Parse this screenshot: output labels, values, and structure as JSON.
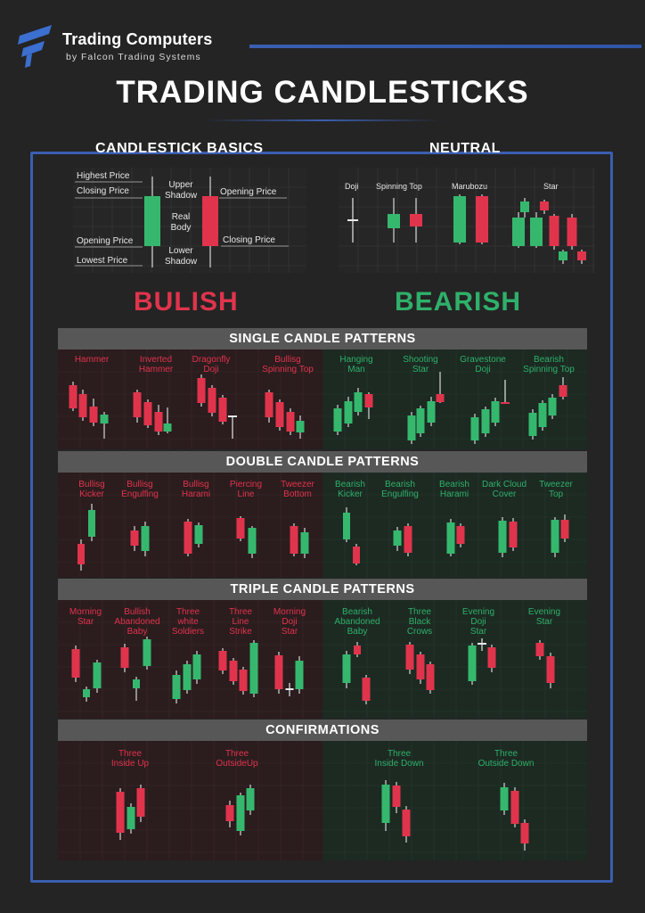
{
  "brand": {
    "title": "Trading Computers",
    "subtitle": "by Falcon Trading Systems"
  },
  "title": "TRADING CANDLESTICKS",
  "colors": {
    "bull": "#35b86e",
    "bear": "#e0344c",
    "accent": "#3b5eb0",
    "bar": "#575757"
  },
  "basics": {
    "heading": "CANDLESTICK BASICS",
    "labels": {
      "highest": "Highest Price",
      "closing_left": "Closing Price",
      "opening_left": "Opening Price",
      "lowest": "Lowest Price",
      "upper_shadow": "Upper\nShadow",
      "real_body": "Real\nBody",
      "lower_shadow": "Lower\nShadow",
      "opening_right": "Opening Price",
      "closing_right": "Closing Price"
    }
  },
  "neutral": {
    "heading": "NEUTRAL",
    "items": [
      "Doji",
      "Spinning Top",
      "Marubozu",
      "Star"
    ]
  },
  "sides": {
    "bullish": "BULISH",
    "bearish": "BEARISH"
  },
  "single": {
    "heading": "SINGLE CANDLE PATTERNS",
    "bullish": [
      "Hammer",
      "Inverted\nHammer",
      "Dragonfly\nDoji",
      "Bullisg\nSpinning Top"
    ],
    "bearish": [
      "Hanging\nMan",
      "Shooting\nStar",
      "Gravestone\nDoji",
      "Bearish\nSpinning Top"
    ]
  },
  "double": {
    "heading": "DOUBLE CANDLE PATTERNS",
    "bullish": [
      "Bullisg\nKicker",
      "Bullisg\nEngulfing",
      "Bullisg\nHarami",
      "Piercing\nLine",
      "Tweezer\nBottom"
    ],
    "bearish": [
      "Bearish\nKicker",
      "Bearish\nEngulfing",
      "Bearish\nHarami",
      "Dark Cloud\nCover",
      "Tweezer\nTop"
    ]
  },
  "triple": {
    "heading": "TRIPLE CANDLE PATTERNS",
    "bullish": [
      "Morning\nStar",
      "Bullish\nAbandoned\nBaby",
      "Three\nwhite\nSoldiers",
      "Three\nLine\nStrike",
      "Morning\nDoji\nStar"
    ],
    "bearish": [
      "Bearish\nAbandoned\nBaby",
      "Three\nBlack\nCrows",
      "Evening\nDoji\nStar",
      "Evening\nStar"
    ]
  },
  "confirm": {
    "heading": "CONFIRMATIONS",
    "bullish": [
      "Three\nInside Up",
      "Three\nOutsideUp"
    ],
    "bearish": [
      "Three\nInside Down",
      "Three\nOutside Down"
    ]
  }
}
